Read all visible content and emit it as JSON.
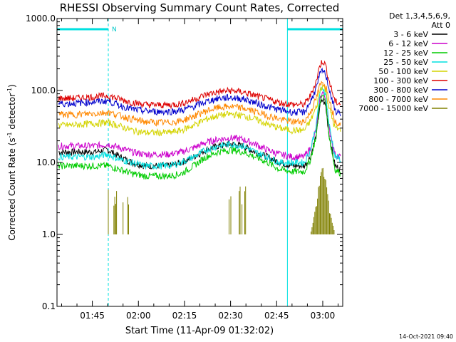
{
  "chart_data": {
    "type": "line",
    "title": "RHESSI Observing Summary Count Rates, Corrected",
    "xlabel": "Start Time (11-Apr-09 01:32:02)",
    "ylabel_main": "Corrected Count Rate (s",
    "ylabel_sup1": "-1",
    "ylabel_mid": " detector",
    "ylabel_sup2": "-1",
    "ylabel_end": ")",
    "yscale": "log",
    "ylim": [
      0.1,
      1000
    ],
    "xlim_minutes": [
      1.5,
      94.5
    ],
    "x_tick_labels": [
      "01:45",
      "02:00",
      "02:15",
      "02:30",
      "02:45",
      "03:00"
    ],
    "x_tick_minutes": [
      13,
      28,
      43,
      58,
      73,
      88
    ],
    "y_tick_labels": [
      "0.1",
      "1.0",
      "10.0",
      "100.0",
      "1000.0"
    ],
    "y_tick_values": [
      0.1,
      1,
      10,
      100,
      1000
    ],
    "grid": false,
    "legend_placement": "right",
    "legend_header": [
      "Det 1,3,4,5,6,9,",
      "Att 0"
    ],
    "attenuator_marker_label": "N",
    "flag_segments_minutes": [
      [
        1.5,
        18.2
      ],
      [
        76.5,
        94.5
      ]
    ],
    "flag_dashed_minutes": [
      18.2,
      94.5
    ],
    "flag_solid_minutes": [
      1.5,
      76.5
    ],
    "x": [
      2,
      6,
      10,
      14,
      18,
      22,
      26,
      30,
      34,
      38,
      42,
      46,
      50,
      54,
      58,
      62,
      66,
      70,
      74,
      78,
      82,
      84,
      86,
      87,
      88,
      89,
      90,
      92,
      94
    ],
    "series": [
      {
        "name": "3 - 6 keV",
        "color": "#000000",
        "values": [
          14,
          14,
          14,
          14,
          15,
          12,
          10,
          9,
          9,
          9,
          10,
          12,
          15,
          17,
          18,
          17,
          14,
          12,
          10,
          9,
          9,
          12,
          25,
          60,
          75,
          60,
          25,
          9,
          8
        ]
      },
      {
        "name": "6 - 12 keV",
        "color": "#cc00cc",
        "values": [
          17,
          17,
          17,
          17,
          18,
          16,
          14,
          13,
          13,
          13,
          14,
          16,
          19,
          21,
          22,
          21,
          18,
          15,
          13,
          12,
          12,
          16,
          30,
          75,
          95,
          75,
          30,
          13,
          12
        ]
      },
      {
        "name": "12 - 25 keV",
        "color": "#00cc00",
        "values": [
          9,
          9,
          9,
          9,
          9,
          8,
          7,
          6.5,
          6.5,
          6.5,
          7,
          9,
          12,
          14,
          15,
          14,
          12,
          10,
          8,
          7.5,
          7.5,
          11,
          25,
          70,
          85,
          70,
          25,
          8,
          7
        ]
      },
      {
        "name": "25 - 50 keV",
        "color": "#00e0e0",
        "values": [
          12,
          12,
          12,
          12,
          13,
          11,
          10,
          9,
          9,
          9,
          10,
          12,
          15,
          17,
          18,
          17,
          14,
          12,
          10,
          10,
          10,
          15,
          35,
          90,
          110,
          90,
          35,
          12,
          11
        ]
      },
      {
        "name": "50 - 100 keV",
        "color": "#d4d400",
        "values": [
          33,
          33,
          34,
          35,
          36,
          32,
          28,
          26,
          26,
          26,
          28,
          33,
          40,
          45,
          47,
          45,
          40,
          34,
          30,
          28,
          28,
          38,
          60,
          100,
          120,
          100,
          60,
          30,
          28
        ]
      },
      {
        "name": "100 - 300 keV",
        "color": "#dd0000",
        "values": [
          78,
          78,
          80,
          82,
          85,
          76,
          68,
          64,
          63,
          63,
          66,
          75,
          88,
          96,
          100,
          95,
          85,
          76,
          68,
          64,
          64,
          85,
          140,
          220,
          260,
          220,
          140,
          70,
          65
        ]
      },
      {
        "name": "300 - 800 keV",
        "color": "#0000cc",
        "values": [
          66,
          66,
          68,
          70,
          72,
          62,
          55,
          52,
          51,
          51,
          53,
          60,
          70,
          78,
          80,
          77,
          68,
          60,
          54,
          50,
          50,
          70,
          110,
          165,
          190,
          165,
          110,
          52,
          48
        ]
      },
      {
        "name": "800 - 7000 keV",
        "color": "#ff8800",
        "values": [
          47,
          46,
          47,
          48,
          50,
          45,
          40,
          37,
          36,
          36,
          38,
          44,
          52,
          58,
          60,
          57,
          51,
          45,
          40,
          37,
          37,
          50,
          80,
          115,
          130,
          115,
          80,
          38,
          34
        ]
      },
      {
        "name": "7000 - 15000 keV",
        "color": "#808000",
        "values": [
          null,
          null,
          null,
          null,
          1,
          1,
          1,
          null,
          null,
          null,
          null,
          null,
          null,
          1,
          1,
          1,
          1,
          null,
          null,
          null,
          null,
          1,
          2.5,
          6,
          8,
          6,
          2.5,
          1,
          null
        ]
      }
    ]
  },
  "footer_timestamp": "14-Oct-2021 09:40"
}
